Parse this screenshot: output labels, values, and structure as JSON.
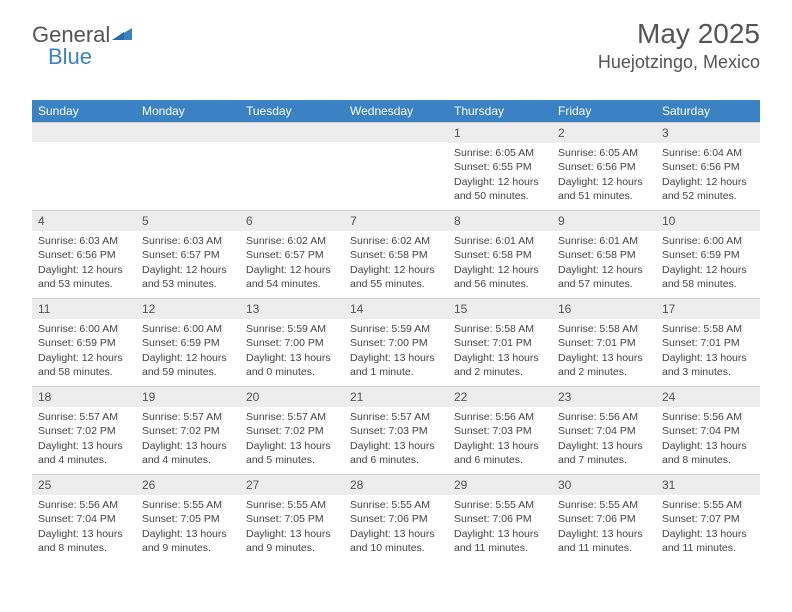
{
  "logo": {
    "text1": "General",
    "text2": "Blue"
  },
  "header": {
    "month": "May 2025",
    "location": "Huejotzingo, Mexico"
  },
  "colors": {
    "header_bg": "#3b82c4",
    "header_text": "#ffffff",
    "date_bg": "#ededed",
    "text": "#444444",
    "border": "#d0d0d0"
  },
  "day_names": [
    "Sunday",
    "Monday",
    "Tuesday",
    "Wednesday",
    "Thursday",
    "Friday",
    "Saturday"
  ],
  "weeks": [
    [
      {
        "empty": true
      },
      {
        "empty": true
      },
      {
        "empty": true
      },
      {
        "empty": true
      },
      {
        "date": "1",
        "sunrise": "Sunrise: 6:05 AM",
        "sunset": "Sunset: 6:55 PM",
        "daylight": "Daylight: 12 hours and 50 minutes."
      },
      {
        "date": "2",
        "sunrise": "Sunrise: 6:05 AM",
        "sunset": "Sunset: 6:56 PM",
        "daylight": "Daylight: 12 hours and 51 minutes."
      },
      {
        "date": "3",
        "sunrise": "Sunrise: 6:04 AM",
        "sunset": "Sunset: 6:56 PM",
        "daylight": "Daylight: 12 hours and 52 minutes."
      }
    ],
    [
      {
        "date": "4",
        "sunrise": "Sunrise: 6:03 AM",
        "sunset": "Sunset: 6:56 PM",
        "daylight": "Daylight: 12 hours and 53 minutes."
      },
      {
        "date": "5",
        "sunrise": "Sunrise: 6:03 AM",
        "sunset": "Sunset: 6:57 PM",
        "daylight": "Daylight: 12 hours and 53 minutes."
      },
      {
        "date": "6",
        "sunrise": "Sunrise: 6:02 AM",
        "sunset": "Sunset: 6:57 PM",
        "daylight": "Daylight: 12 hours and 54 minutes."
      },
      {
        "date": "7",
        "sunrise": "Sunrise: 6:02 AM",
        "sunset": "Sunset: 6:58 PM",
        "daylight": "Daylight: 12 hours and 55 minutes."
      },
      {
        "date": "8",
        "sunrise": "Sunrise: 6:01 AM",
        "sunset": "Sunset: 6:58 PM",
        "daylight": "Daylight: 12 hours and 56 minutes."
      },
      {
        "date": "9",
        "sunrise": "Sunrise: 6:01 AM",
        "sunset": "Sunset: 6:58 PM",
        "daylight": "Daylight: 12 hours and 57 minutes."
      },
      {
        "date": "10",
        "sunrise": "Sunrise: 6:00 AM",
        "sunset": "Sunset: 6:59 PM",
        "daylight": "Daylight: 12 hours and 58 minutes."
      }
    ],
    [
      {
        "date": "11",
        "sunrise": "Sunrise: 6:00 AM",
        "sunset": "Sunset: 6:59 PM",
        "daylight": "Daylight: 12 hours and 58 minutes."
      },
      {
        "date": "12",
        "sunrise": "Sunrise: 6:00 AM",
        "sunset": "Sunset: 6:59 PM",
        "daylight": "Daylight: 12 hours and 59 minutes."
      },
      {
        "date": "13",
        "sunrise": "Sunrise: 5:59 AM",
        "sunset": "Sunset: 7:00 PM",
        "daylight": "Daylight: 13 hours and 0 minutes."
      },
      {
        "date": "14",
        "sunrise": "Sunrise: 5:59 AM",
        "sunset": "Sunset: 7:00 PM",
        "daylight": "Daylight: 13 hours and 1 minute."
      },
      {
        "date": "15",
        "sunrise": "Sunrise: 5:58 AM",
        "sunset": "Sunset: 7:01 PM",
        "daylight": "Daylight: 13 hours and 2 minutes."
      },
      {
        "date": "16",
        "sunrise": "Sunrise: 5:58 AM",
        "sunset": "Sunset: 7:01 PM",
        "daylight": "Daylight: 13 hours and 2 minutes."
      },
      {
        "date": "17",
        "sunrise": "Sunrise: 5:58 AM",
        "sunset": "Sunset: 7:01 PM",
        "daylight": "Daylight: 13 hours and 3 minutes."
      }
    ],
    [
      {
        "date": "18",
        "sunrise": "Sunrise: 5:57 AM",
        "sunset": "Sunset: 7:02 PM",
        "daylight": "Daylight: 13 hours and 4 minutes."
      },
      {
        "date": "19",
        "sunrise": "Sunrise: 5:57 AM",
        "sunset": "Sunset: 7:02 PM",
        "daylight": "Daylight: 13 hours and 4 minutes."
      },
      {
        "date": "20",
        "sunrise": "Sunrise: 5:57 AM",
        "sunset": "Sunset: 7:02 PM",
        "daylight": "Daylight: 13 hours and 5 minutes."
      },
      {
        "date": "21",
        "sunrise": "Sunrise: 5:57 AM",
        "sunset": "Sunset: 7:03 PM",
        "daylight": "Daylight: 13 hours and 6 minutes."
      },
      {
        "date": "22",
        "sunrise": "Sunrise: 5:56 AM",
        "sunset": "Sunset: 7:03 PM",
        "daylight": "Daylight: 13 hours and 6 minutes."
      },
      {
        "date": "23",
        "sunrise": "Sunrise: 5:56 AM",
        "sunset": "Sunset: 7:04 PM",
        "daylight": "Daylight: 13 hours and 7 minutes."
      },
      {
        "date": "24",
        "sunrise": "Sunrise: 5:56 AM",
        "sunset": "Sunset: 7:04 PM",
        "daylight": "Daylight: 13 hours and 8 minutes."
      }
    ],
    [
      {
        "date": "25",
        "sunrise": "Sunrise: 5:56 AM",
        "sunset": "Sunset: 7:04 PM",
        "daylight": "Daylight: 13 hours and 8 minutes."
      },
      {
        "date": "26",
        "sunrise": "Sunrise: 5:55 AM",
        "sunset": "Sunset: 7:05 PM",
        "daylight": "Daylight: 13 hours and 9 minutes."
      },
      {
        "date": "27",
        "sunrise": "Sunrise: 5:55 AM",
        "sunset": "Sunset: 7:05 PM",
        "daylight": "Daylight: 13 hours and 9 minutes."
      },
      {
        "date": "28",
        "sunrise": "Sunrise: 5:55 AM",
        "sunset": "Sunset: 7:06 PM",
        "daylight": "Daylight: 13 hours and 10 minutes."
      },
      {
        "date": "29",
        "sunrise": "Sunrise: 5:55 AM",
        "sunset": "Sunset: 7:06 PM",
        "daylight": "Daylight: 13 hours and 11 minutes."
      },
      {
        "date": "30",
        "sunrise": "Sunrise: 5:55 AM",
        "sunset": "Sunset: 7:06 PM",
        "daylight": "Daylight: 13 hours and 11 minutes."
      },
      {
        "date": "31",
        "sunrise": "Sunrise: 5:55 AM",
        "sunset": "Sunset: 7:07 PM",
        "daylight": "Daylight: 13 hours and 11 minutes."
      }
    ]
  ]
}
